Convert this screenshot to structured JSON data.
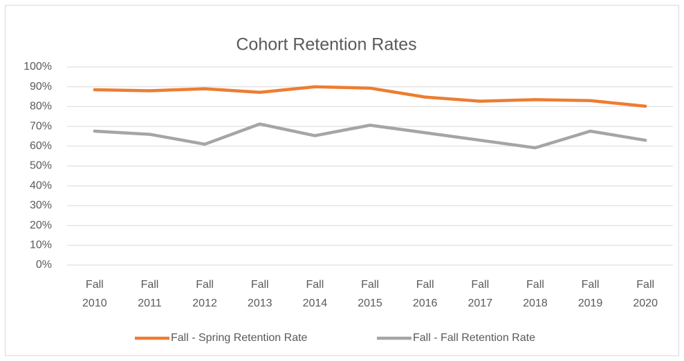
{
  "chart_data": {
    "type": "line",
    "title": "Cohort Retention Rates",
    "categories": [
      "Fall 2010",
      "Fall 2011",
      "Fall 2012",
      "Fall 2013",
      "Fall 2014",
      "Fall 2015",
      "Fall 2016",
      "Fall 2017",
      "Fall 2018",
      "Fall 2019",
      "Fall 2020"
    ],
    "series": [
      {
        "name": "Fall - Spring Retention Rate",
        "color": "#ed7d31",
        "values": [
          88.5,
          88,
          89,
          87.2,
          90,
          89.3,
          84.8,
          82.7,
          83.5,
          83,
          80.2
        ]
      },
      {
        "name": "Fall - Fall Retention Rate",
        "color": "#a5a5a5",
        "values": [
          67.6,
          66,
          61,
          71.2,
          65.3,
          70.6,
          66.8,
          63,
          59.2,
          67.6,
          63
        ]
      }
    ],
    "ylim": [
      0,
      100
    ],
    "yticks": [
      {
        "value": 0,
        "label": "0%"
      },
      {
        "value": 10,
        "label": "10%"
      },
      {
        "value": 20,
        "label": "20%"
      },
      {
        "value": 30,
        "label": "30%"
      },
      {
        "value": 40,
        "label": "40%"
      },
      {
        "value": 50,
        "label": "50%"
      },
      {
        "value": 60,
        "label": "60%"
      },
      {
        "value": 70,
        "label": "70%"
      },
      {
        "value": 80,
        "label": "80%"
      },
      {
        "value": 90,
        "label": "90%"
      },
      {
        "value": 100,
        "label": "100%"
      }
    ],
    "grid": true,
    "legend": "bottom"
  }
}
